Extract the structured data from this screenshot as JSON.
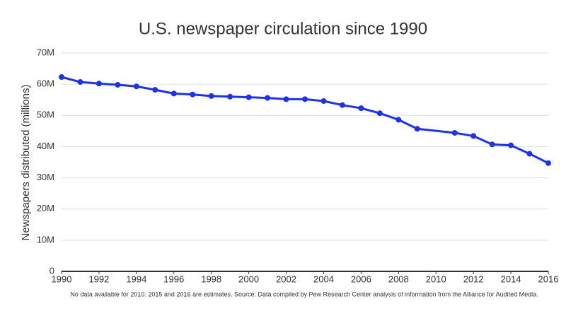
{
  "chart_data": {
    "type": "line",
    "title": "U.S. newspaper circulation since 1990",
    "y_label": "Newspapers distributed (millions)",
    "note": "No data available for 2010. 2015 and 2016 are estimates. Source: Data compiled by Pew Research Center analysis of information from the Alliance for Audited Media.",
    "x": [
      1990,
      1991,
      1992,
      1993,
      1994,
      1995,
      1996,
      1997,
      1998,
      1999,
      2000,
      2001,
      2002,
      2003,
      2004,
      2005,
      2006,
      2007,
      2008,
      2009,
      2011,
      2012,
      2013,
      2014,
      2015,
      2016
    ],
    "series": [
      {
        "name": "Circulation",
        "color": "#1f33e6",
        "values": [
          62.3,
          60.7,
          60.2,
          59.8,
          59.3,
          58.2,
          57.0,
          56.7,
          56.2,
          56.0,
          55.8,
          55.6,
          55.2,
          55.2,
          54.6,
          53.3,
          52.3,
          50.7,
          48.6,
          45.7,
          44.4,
          43.4,
          40.7,
          40.4,
          37.7,
          34.7
        ]
      }
    ],
    "xlim": [
      1990,
      2016
    ],
    "xticks": [
      1990,
      1992,
      1994,
      1996,
      1998,
      2000,
      2002,
      2004,
      2006,
      2008,
      2010,
      2012,
      2014,
      2016
    ],
    "ylim": [
      0,
      70
    ],
    "yticks": [
      0,
      {
        "value": 10,
        "label": "10M"
      },
      {
        "value": 20,
        "label": "20M"
      },
      {
        "value": 30,
        "label": "30M"
      },
      {
        "value": 40,
        "label": "40M"
      },
      {
        "value": 50,
        "label": "50M"
      },
      {
        "value": 60,
        "label": "60M"
      },
      {
        "value": 70,
        "label": "70M"
      }
    ],
    "grid": true
  }
}
